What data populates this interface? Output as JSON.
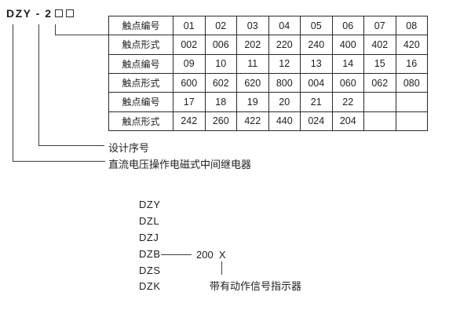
{
  "model": {
    "prefix": "DZY - 2",
    "placeholder_box_count": 2
  },
  "callouts": {
    "design_serial": "设计序号",
    "relay_description": "直流电压操作电磁式中间继电器"
  },
  "table": {
    "row_header_number": "触点编号",
    "row_header_form": "触点形式",
    "rows": [
      {
        "label": "触点编号",
        "values": [
          "01",
          "02",
          "03",
          "04",
          "05",
          "06",
          "07",
          "08"
        ]
      },
      {
        "label": "触点形式",
        "values": [
          "002",
          "006",
          "202",
          "220",
          "240",
          "400",
          "402",
          "420"
        ]
      },
      {
        "label": "触点编号",
        "values": [
          "09",
          "10",
          "11",
          "12",
          "13",
          "14",
          "15",
          "16"
        ]
      },
      {
        "label": "触点形式",
        "values": [
          "600",
          "602",
          "620",
          "800",
          "004",
          "060",
          "062",
          "080"
        ]
      },
      {
        "label": "触点编号",
        "values": [
          "17",
          "18",
          "19",
          "20",
          "21",
          "22",
          "",
          ""
        ]
      },
      {
        "label": "触点形式",
        "values": [
          "242",
          "260",
          "422",
          "440",
          "024",
          "204",
          "",
          ""
        ]
      }
    ]
  },
  "series_list": {
    "codes": [
      "DZY",
      "DZL",
      "DZJ",
      "DZB",
      "DZS",
      "DZK"
    ],
    "dzb_suffix": "200  X",
    "indicator_note": "带有动作信号指示器"
  },
  "colors": {
    "text": "#1f1f1f",
    "line": "#3c3c3c",
    "border": "#2a2a2a",
    "background": "#ffffff"
  }
}
